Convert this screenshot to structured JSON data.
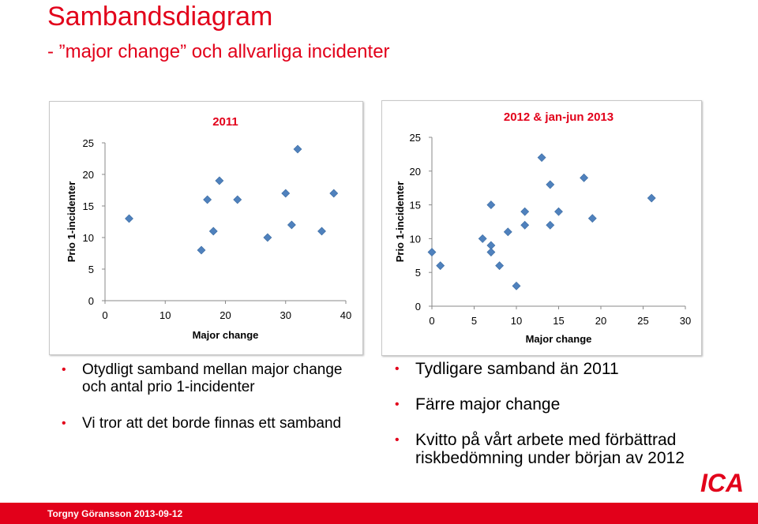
{
  "slide": {
    "title": "Sambandsdiagram",
    "subtitle": "- ”major change” och allvarliga incidenter",
    "footer": "Torgny Göransson 2013-09-12",
    "logo_text": "ICA",
    "accent_color": "#e2001a",
    "marker_color": "#4f81bd"
  },
  "chart_data": [
    {
      "type": "scatter",
      "title": "2011",
      "xlabel": "Major change",
      "ylabel": "Prio 1-incidenter",
      "xlim": [
        0,
        40
      ],
      "ylim": [
        0,
        25
      ],
      "x_ticks": [
        "0",
        "10",
        "20",
        "30",
        "40"
      ],
      "y_ticks": [
        "0",
        "5",
        "10",
        "15",
        "20",
        "25"
      ],
      "grid": false,
      "series": [
        {
          "points": [
            [
              4,
              13
            ],
            [
              16,
              8
            ],
            [
              17,
              16
            ],
            [
              18,
              11
            ],
            [
              19,
              19
            ],
            [
              22,
              16
            ],
            [
              27,
              10
            ],
            [
              30,
              17
            ],
            [
              31,
              12
            ],
            [
              32,
              24
            ],
            [
              36,
              11
            ],
            [
              38,
              17
            ]
          ]
        }
      ]
    },
    {
      "type": "scatter",
      "title": "2012 & jan-jun 2013",
      "xlabel": "Major change",
      "ylabel": "Prio 1-incidenter",
      "xlim": [
        0,
        30
      ],
      "ylim": [
        0,
        25
      ],
      "x_ticks": [
        "0",
        "5",
        "10",
        "15",
        "20",
        "25",
        "30"
      ],
      "y_ticks": [
        "0",
        "5",
        "10",
        "15",
        "20",
        "25"
      ],
      "grid": false,
      "series": [
        {
          "points": [
            [
              0,
              8
            ],
            [
              1,
              6
            ],
            [
              6,
              10
            ],
            [
              7,
              9
            ],
            [
              7,
              8
            ],
            [
              7,
              15
            ],
            [
              8,
              6
            ],
            [
              9,
              11
            ],
            [
              10,
              3
            ],
            [
              11,
              14
            ],
            [
              11,
              12
            ],
            [
              13,
              22
            ],
            [
              14,
              18
            ],
            [
              14,
              12
            ],
            [
              15,
              14
            ],
            [
              18,
              19
            ],
            [
              19,
              13
            ],
            [
              26,
              16
            ]
          ]
        }
      ]
    }
  ],
  "bullets_left": [
    "Otydligt samband mellan major change och antal prio 1-incidenter",
    "Vi tror att det borde finnas ett samband"
  ],
  "bullets_right": [
    "Tydligare samband än 2011",
    "Färre major change",
    "Kvitto på vårt arbete med förbättrad riskbedömning under början av 2012"
  ]
}
